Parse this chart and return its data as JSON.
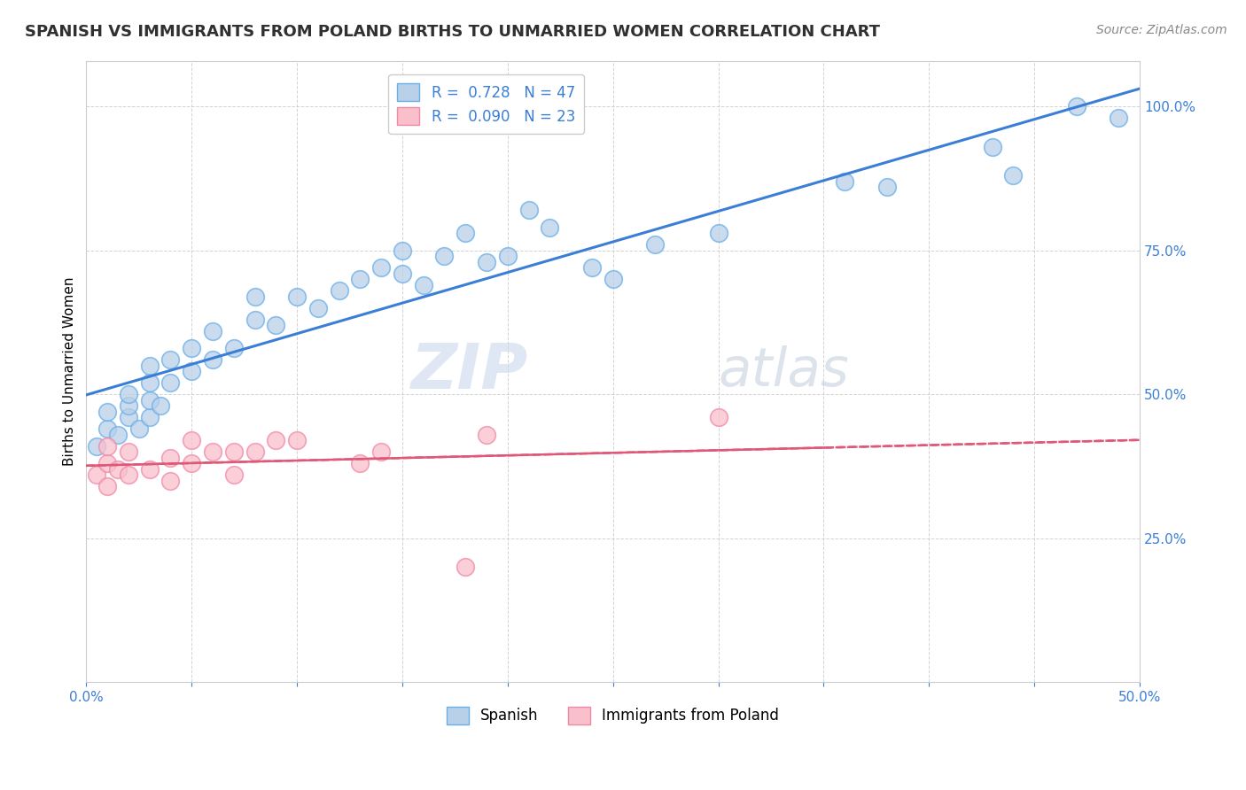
{
  "title": "SPANISH VS IMMIGRANTS FROM POLAND BIRTHS TO UNMARRIED WOMEN CORRELATION CHART",
  "source": "Source: ZipAtlas.com",
  "ylabel": "Births to Unmarried Women",
  "xlim": [
    0.0,
    0.5
  ],
  "ylim": [
    0.0,
    1.08
  ],
  "spanish_R": 0.728,
  "spanish_N": 47,
  "poland_R": 0.09,
  "poland_N": 23,
  "watermark_zip": "ZIP",
  "watermark_atlas": "atlas",
  "spanish_color": "#b8d0e8",
  "spanish_edge_color": "#6aaee8",
  "spanish_line_color": "#3a7fd5",
  "poland_color": "#f9c0cc",
  "poland_edge_color": "#f088a8",
  "poland_line_color": "#e05878",
  "legend_label1": "R =  0.728   N = 47",
  "legend_label2": "R =  0.090   N = 23",
  "legend_label_spanish": "Spanish",
  "legend_label_poland": "Immigrants from Poland",
  "spanish_x": [
    0.005,
    0.01,
    0.01,
    0.015,
    0.02,
    0.02,
    0.02,
    0.025,
    0.03,
    0.03,
    0.03,
    0.03,
    0.035,
    0.04,
    0.04,
    0.05,
    0.05,
    0.06,
    0.06,
    0.07,
    0.08,
    0.08,
    0.09,
    0.1,
    0.11,
    0.12,
    0.13,
    0.14,
    0.15,
    0.15,
    0.16,
    0.17,
    0.18,
    0.19,
    0.2,
    0.21,
    0.22,
    0.24,
    0.25,
    0.27,
    0.3,
    0.36,
    0.38,
    0.43,
    0.44,
    0.47,
    0.49
  ],
  "spanish_y": [
    0.41,
    0.44,
    0.47,
    0.43,
    0.46,
    0.48,
    0.5,
    0.44,
    0.46,
    0.49,
    0.52,
    0.55,
    0.48,
    0.52,
    0.56,
    0.54,
    0.58,
    0.56,
    0.61,
    0.58,
    0.63,
    0.67,
    0.62,
    0.67,
    0.65,
    0.68,
    0.7,
    0.72,
    0.71,
    0.75,
    0.69,
    0.74,
    0.78,
    0.73,
    0.74,
    0.82,
    0.79,
    0.72,
    0.7,
    0.76,
    0.78,
    0.87,
    0.86,
    0.93,
    0.88,
    1.0,
    0.98
  ],
  "poland_x": [
    0.005,
    0.01,
    0.01,
    0.01,
    0.015,
    0.02,
    0.02,
    0.03,
    0.04,
    0.04,
    0.05,
    0.05,
    0.06,
    0.07,
    0.07,
    0.08,
    0.09,
    0.1,
    0.13,
    0.14,
    0.18,
    0.19,
    0.3
  ],
  "poland_y": [
    0.36,
    0.34,
    0.38,
    0.41,
    0.37,
    0.36,
    0.4,
    0.37,
    0.35,
    0.39,
    0.38,
    0.42,
    0.4,
    0.36,
    0.4,
    0.4,
    0.42,
    0.42,
    0.38,
    0.4,
    0.2,
    0.43,
    0.46
  ],
  "title_fontsize": 13,
  "source_fontsize": 10,
  "tick_fontsize": 11,
  "ylabel_fontsize": 11,
  "legend_fontsize": 12,
  "tick_color": "#3a7fd5",
  "grid_color": "#c8c8c8",
  "title_color": "#303030",
  "source_color": "#888888"
}
